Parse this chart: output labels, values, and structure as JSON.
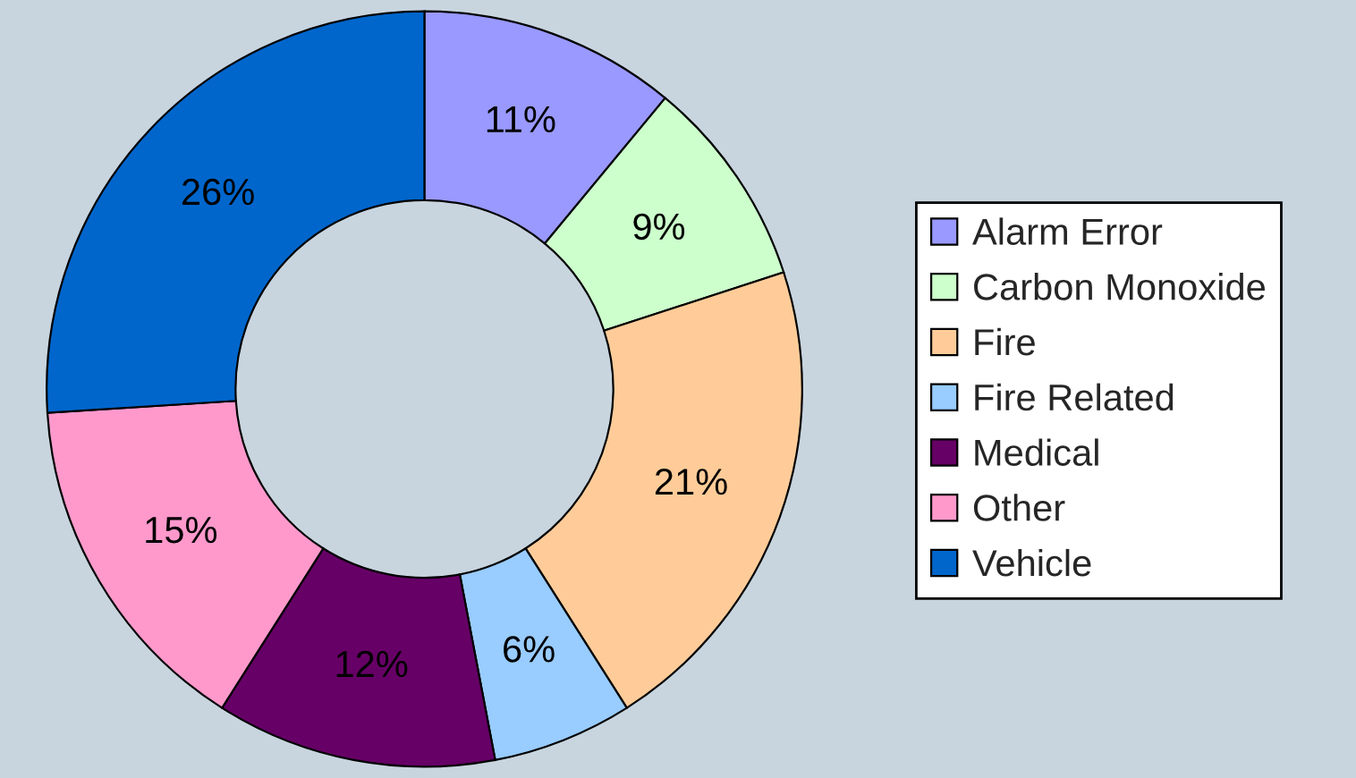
{
  "chart_data": {
    "type": "donut",
    "categories": [
      "Alarm Error",
      "Carbon Monoxide",
      "Fire",
      "Fire Related",
      "Medical",
      "Other",
      "Vehicle"
    ],
    "values": [
      11,
      9,
      21,
      6,
      12,
      15,
      26
    ],
    "value_labels": [
      "11%",
      "9%",
      "21%",
      "6%",
      "12%",
      "15%",
      "26%"
    ],
    "colors": [
      "#9999ff",
      "#ccffcc",
      "#ffcc99",
      "#99ccff",
      "#660066",
      "#ff99cc",
      "#0066cc"
    ],
    "legend": "right"
  }
}
